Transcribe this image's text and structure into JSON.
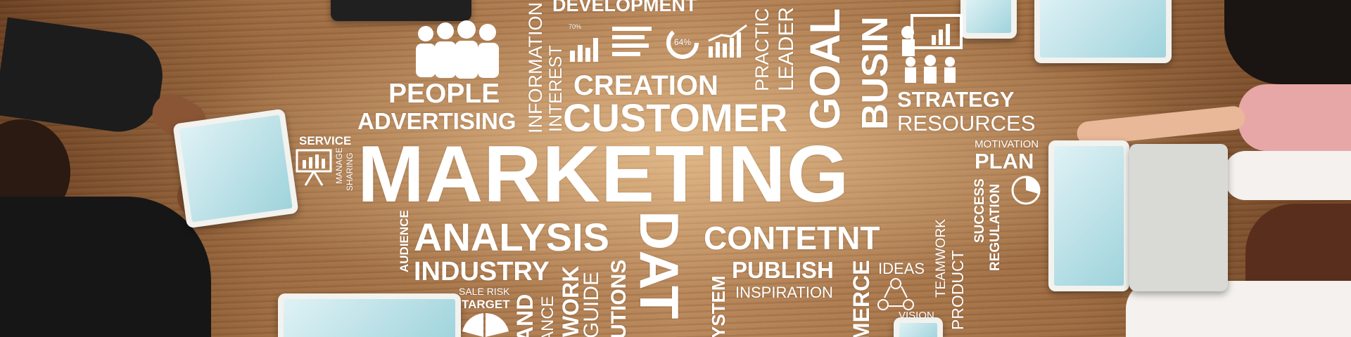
{
  "image": {
    "subject": "marketing-word-cloud-over-business-meeting",
    "colors": {
      "wood_dark": "#6a4022",
      "wood_light": "#b8875a",
      "text": "#ffffff",
      "screen": "#9fd3dc",
      "sleeve_dark": "#1c1c1c",
      "sleeve_pink": "#e8a7a7"
    }
  },
  "words": {
    "marketing": "MARKETING",
    "development": "DEVELOPMENT",
    "people": "PEOPLE",
    "advertising": "ADVERTISING",
    "information": "INFORMATION",
    "interest": "INTEREST",
    "creation": "CREATION",
    "customer": "CUSTOMER",
    "practice": "PRACTIC",
    "leader": "LEADER",
    "goal": "GOAL",
    "business": "BUSIN",
    "strategy": "STRATEGY",
    "resources": "RESOURCES",
    "service": "SERVICE",
    "manage": "MANAGE",
    "sharing": "SHARING",
    "motivation": "MOTIVATION",
    "plan": "PLAN",
    "success": "SUCCESS",
    "regulation": "REGULATION",
    "audience": "AUDIENCE",
    "analysis": "ANALYSIS",
    "data": "DAT",
    "content": "CONTETNT",
    "teamwork": "TEAMWORK",
    "product": "PRODUCT",
    "industry": "INDUSTRY",
    "system": "YSTEM",
    "publish": "PUBLISH",
    "ideas": "IDEAS",
    "inspiration": "INSPIRATION",
    "commerce": "MERCE",
    "vision": "VISION",
    "sale_risk": "SALE RISK",
    "target": "TARGET",
    "brand": "AND",
    "finance": "ANCE",
    "network": "WORK",
    "guide": "GUIDE",
    "solutions": "UTIONS",
    "percent_badge": "64%",
    "percent_small": "70%"
  }
}
